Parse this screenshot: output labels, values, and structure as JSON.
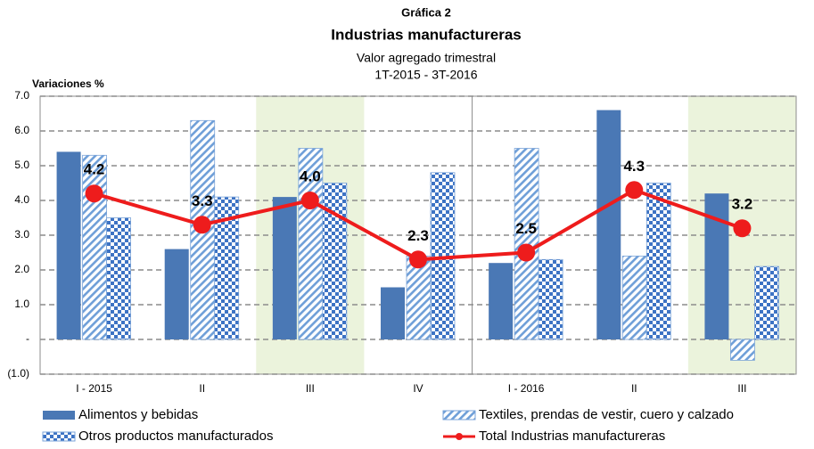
{
  "chart_data": {
    "type": "bar_line",
    "title": "Gráfica 2",
    "subtitle": "Industrias manufactureras",
    "subtitle2": "Valor agregado trimestral",
    "subtitle3": "1T-2015 - 3T-2016",
    "y_label": "Variaciones %",
    "categories": [
      "I - 2015",
      "II",
      "III",
      "IV",
      "I - 2016",
      "II",
      "III"
    ],
    "highlight": [
      2,
      6
    ],
    "divider": [
      4
    ],
    "series": [
      {
        "name": "Alimentos y bebidas",
        "type": "bar",
        "color": "#4a78b5",
        "pattern": "solid",
        "values": [
          5.4,
          2.6,
          4.1,
          1.5,
          2.2,
          6.6,
          4.2
        ]
      },
      {
        "name": "Textiles, prendas de vestir, cuero y calzado",
        "type": "bar",
        "color": "#4a78b5",
        "pattern": "stripes",
        "values": [
          5.3,
          6.3,
          5.5,
          2.4,
          5.5,
          2.4,
          -0.6
        ]
      },
      {
        "name": "Otros productos manufacturados",
        "type": "bar",
        "color": "#4a78b5",
        "pattern": "checks",
        "values": [
          3.5,
          4.1,
          4.5,
          4.8,
          2.3,
          4.5,
          2.1
        ]
      },
      {
        "name": "Total Industrias manufactureras",
        "type": "line",
        "color": "#ee1c1c",
        "values": [
          4.2,
          3.3,
          4.0,
          2.3,
          2.5,
          4.3,
          3.2
        ],
        "value_labels": [
          "4.2",
          "3.3",
          "4.0",
          "2.3",
          "2.5",
          "4.3",
          "3.2"
        ]
      }
    ],
    "ylim": [
      -1,
      7
    ],
    "yticks": [
      {
        "value": -1,
        "label": "(1.0)"
      },
      {
        "value": 0,
        "label": "-"
      },
      {
        "value": 1,
        "label": "1.0"
      },
      {
        "value": 2,
        "label": "2.0"
      },
      {
        "value": 3,
        "label": "3.0"
      },
      {
        "value": 4,
        "label": "4.0"
      },
      {
        "value": 5,
        "label": "5.0"
      },
      {
        "value": 6,
        "label": "6.0"
      },
      {
        "value": 7,
        "label": "7.0"
      }
    ],
    "grid": true
  }
}
